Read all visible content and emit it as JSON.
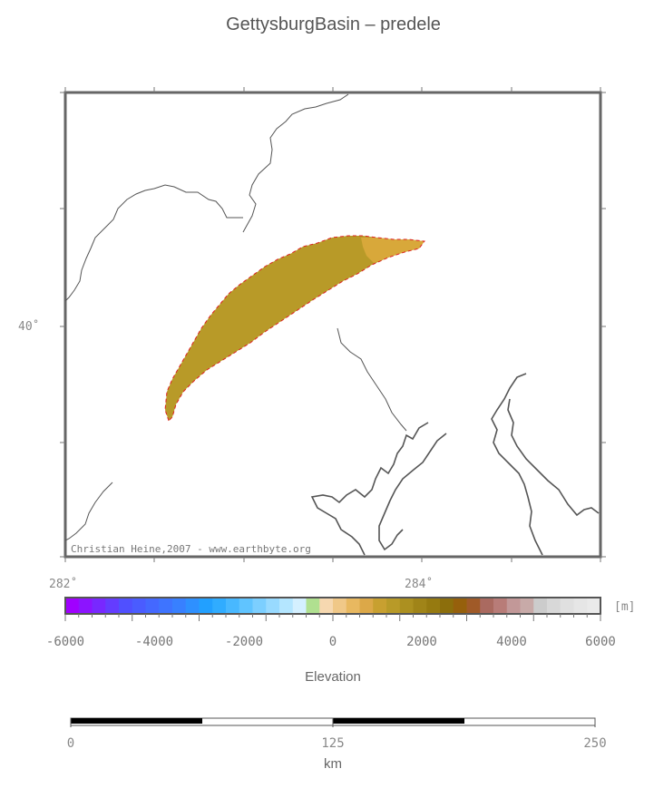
{
  "title": "GettysburgBasin – predele",
  "map": {
    "lat_labels": [
      "40˚"
    ],
    "lon_labels": [
      "282˚",
      "284˚"
    ],
    "credit": "Christian Heine,2007 - www.earthbyte.org",
    "basin_fill": "#b89a28",
    "basin_fill_light": "#d8a83a",
    "outline_color": "#dd2222",
    "coast_color": "#555555"
  },
  "colorbar": {
    "unit": "[m]",
    "label": "Elevation",
    "ticks": [
      "-6000",
      "-4000",
      "-2000",
      "0",
      "2000",
      "4000",
      "6000"
    ],
    "colors": [
      "#a000ff",
      "#8c14ff",
      "#7828ff",
      "#643cff",
      "#5050ff",
      "#4a5cff",
      "#4468ff",
      "#3e74ff",
      "#3880ff",
      "#2e90ff",
      "#22a0ff",
      "#30acff",
      "#48b8ff",
      "#60c4ff",
      "#7ccfff",
      "#98daff",
      "#b4e6ff",
      "#d4f0ff",
      "#b0e090",
      "#f6d8b0",
      "#f0c888",
      "#e8b860",
      "#dca848",
      "#c8a030",
      "#b89a28",
      "#ac9020",
      "#a08418",
      "#967a10",
      "#8c6e0c",
      "#96600c",
      "#a05a28",
      "#aa6a60",
      "#b87c78",
      "#c29898",
      "#c8aaa8",
      "#cccccc",
      "#d8d8d8",
      "#e0e0e0",
      "#e6e6e6",
      "#eaeaea"
    ]
  },
  "scalebar": {
    "ticks": [
      "0",
      "125",
      "250"
    ],
    "unit": "km"
  }
}
